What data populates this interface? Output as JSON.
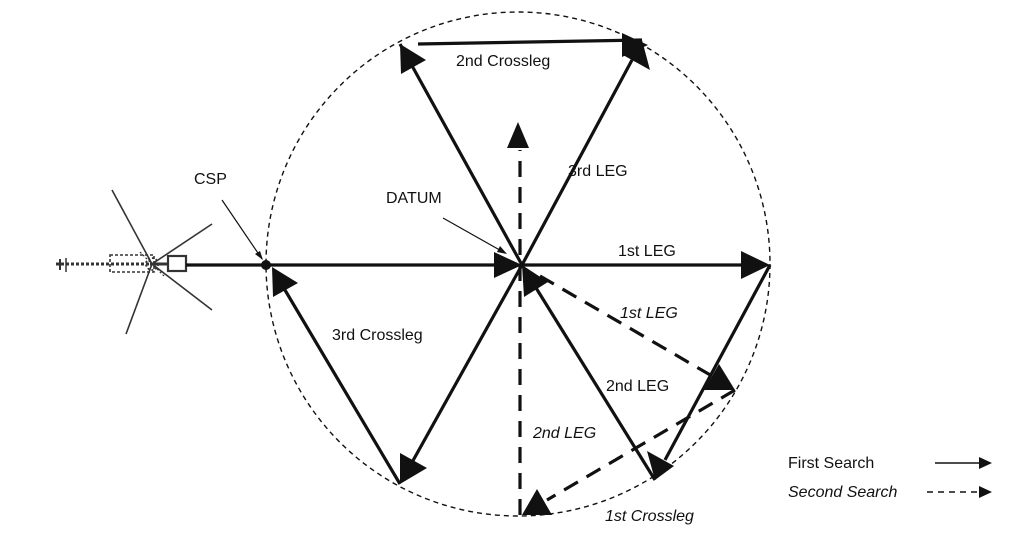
{
  "labels": {
    "csp": "CSP",
    "datum": "DATUM",
    "first_leg": "1st LEG",
    "second_leg": "2nd LEG",
    "third_leg": "3rd LEG",
    "first_crossleg": "1st Crossleg",
    "second_crossleg": "2nd Crossleg",
    "third_crossleg": "3rd Crossleg",
    "second_search_first_leg": "1st LEG",
    "second_search_second_leg": "2nd LEG"
  },
  "legend": {
    "first_search": "First Search",
    "second_search": "Second Search"
  },
  "colors": {
    "ink": "#111111",
    "background": "#ffffff"
  }
}
